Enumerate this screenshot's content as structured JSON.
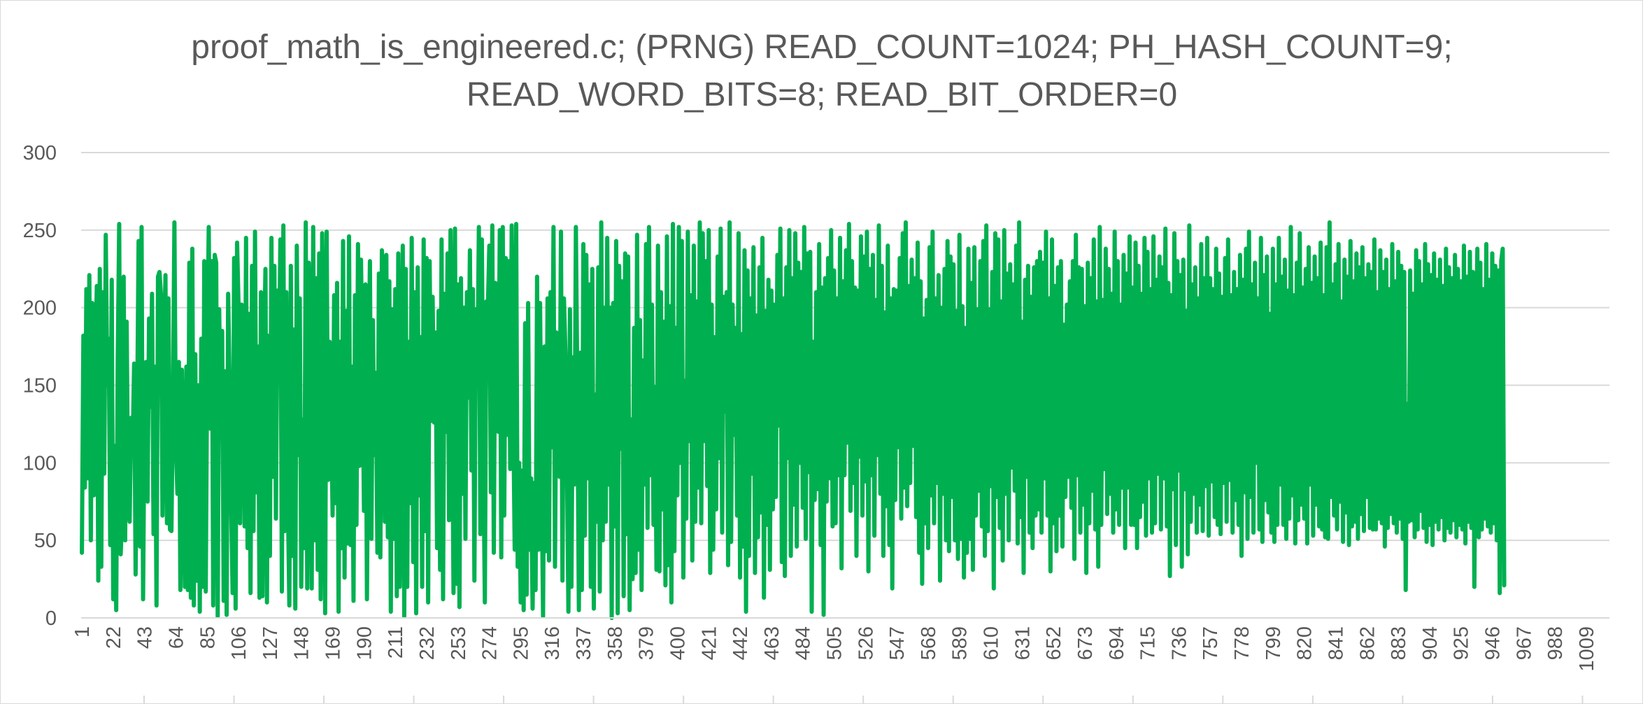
{
  "colors": {
    "series": "#00b050",
    "grid": "#d9d9d9",
    "text": "#595959"
  },
  "chart_data": {
    "type": "line",
    "title_lines": [
      "proof_math_is_engineered.c; (PRNG) READ_COUNT=1024; PH_HASH_COUNT=9;",
      "READ_WORD_BITS=8; READ_BIT_ORDER=0"
    ],
    "xlabel": "",
    "ylabel": "",
    "ylim": [
      0,
      300
    ],
    "yticks": [
      0,
      50,
      100,
      150,
      200,
      250,
      300
    ],
    "x_count": 1024,
    "x_tick_labels": [
      "1",
      "22",
      "43",
      "64",
      "85",
      "106",
      "127",
      "148",
      "169",
      "190",
      "211",
      "232",
      "253",
      "274",
      "295",
      "316",
      "337",
      "358",
      "379",
      "400",
      "421",
      "442",
      "463",
      "484",
      "505",
      "526",
      "547",
      "568",
      "589",
      "610",
      "631",
      "652",
      "673",
      "694",
      "715",
      "736",
      "757",
      "778",
      "799",
      "820",
      "841",
      "862",
      "883",
      "904",
      "925",
      "946",
      "967",
      "988",
      "1009"
    ],
    "grid": true,
    "legend": "none",
    "series": [
      {
        "values": [
          42,
          182,
          84,
          212,
          90,
          221,
          50,
          203,
          79,
          160,
          214,
          24,
          225,
          33,
          210,
          93,
          247,
          150,
          180,
          47,
          218,
          12,
          111,
          5,
          165,
          254,
          41,
          66,
          220,
          50,
          191,
          77,
          62,
          129,
          109,
          164,
          28,
          130,
          243,
          46,
          252,
          12,
          140,
          165,
          75,
          193,
          136,
          209,
          54,
          162,
          8,
          220,
          223,
          208,
          66,
          169,
          221,
          61,
          206,
          57,
          56,
          139,
          255,
          112,
          80,
          165,
          18,
          160,
          96,
          20,
          162,
          18,
          229,
          13,
          238,
          8,
          170,
          24,
          150,
          4,
          180,
          20,
          230,
          17,
          171,
          252,
          122,
          230,
          8,
          234,
          229,
          1,
          199,
          125,
          185,
          11,
          159,
          2,
          209,
          150,
          75,
          16,
          232,
          6,
          242,
          200,
          61,
          202,
          190,
          59,
          245,
          45,
          196,
          16,
          227,
          56,
          249,
          81,
          175,
          13,
          210,
          14,
          167,
          225,
          10,
          182,
          40,
          245,
          91,
          227,
          64,
          211,
          158,
          244,
          17,
          253,
          56,
          210,
          79,
          8,
          227,
          40,
          186,
          6,
          240,
          105,
          206,
          20,
          128,
          45,
          255,
          19,
          229,
          179,
          19,
          252,
          50,
          219,
          31,
          235,
          12,
          248,
          162,
          3,
          249,
          89,
          178,
          133,
          66,
          208,
          74,
          216,
          4,
          178,
          45,
          243,
          26,
          198,
          48,
          246,
          47,
          162,
          11,
          208,
          60,
          241,
          98,
          231,
          165,
          69,
          215,
          12,
          152,
          230,
          51,
          192,
          105,
          158,
          42,
          222,
          39,
          237,
          220,
          62,
          234,
          52,
          217,
          4,
          199,
          51,
          212,
          14,
          235,
          20,
          121,
          240,
          1,
          225,
          20,
          178,
          74,
          245,
          36,
          210,
          3,
          226,
          79,
          181,
          20,
          244,
          56,
          232,
          10,
          230,
          127,
          207,
          126,
          184,
          45,
          198,
          31,
          244,
          12,
          209,
          120,
          235,
          63,
          250,
          157,
          16,
          251,
          22,
          215,
          7,
          219,
          80,
          200,
          51,
          210,
          142,
          237,
          95,
          212,
          24,
          199,
          153,
          252,
          54,
          244,
          106,
          10,
          204,
          198,
          240,
          81,
          253,
          42,
          216,
          171,
          120,
          250,
          39,
          252,
          66,
          232,
          118,
          230,
          96,
          253,
          135,
          44,
          254,
          33,
          100,
          10,
          95,
          5,
          190,
          15,
          203,
          44,
          90,
          6,
          87,
          18,
          220,
          44,
          203,
          94,
          1,
          175,
          43,
          206,
          37,
          210,
          110,
          252,
          33,
          184,
          166,
          91,
          249,
          24,
          206,
          171,
          100,
          4,
          199,
          20,
          168,
          86,
          252,
          145,
          5,
          171,
          18,
          241,
          53,
          234,
          90,
          215,
          20,
          225,
          6,
          144,
          62,
          226,
          17,
          255,
          50,
          200,
          62,
          245,
          86,
          200,
          0,
          203,
          59,
          243,
          3,
          227,
          109,
          217,
          14,
          235,
          54,
          233,
          5,
          128,
          25,
          187,
          29,
          247,
          44,
          192,
          18,
          166,
          86,
          241,
          58,
          252,
          92,
          202,
          60,
          149,
          31,
          240,
          30,
          210,
          70,
          191,
          21,
          246,
          34,
          201,
          10,
          254,
          43,
          187,
          79,
          252,
          100,
          243,
          26,
          153,
          64,
          249,
          114,
          208,
          37,
          240,
          62,
          204,
          84,
          255,
          61,
          248,
          114,
          230,
          85,
          250,
          29,
          202,
          44,
          181,
          70,
          233,
          103,
          251,
          55,
          207,
          133,
          210,
          34,
          255,
          49,
          202,
          118,
          187,
          66,
          248,
          26,
          183,
          46,
          237,
          4,
          224,
          40,
          206,
          93,
          239,
          29,
          195,
          52,
          226,
          68,
          245,
          13,
          198,
          60,
          218,
          31,
          211,
          70,
          202,
          78,
          234,
          124,
          251,
          36,
          206,
          27,
          226,
          103,
          250,
          40,
          219,
          73,
          248,
          46,
          229,
          100,
          223,
          71,
          252,
          51,
          235,
          94,
          236,
          4,
          178,
          76,
          210,
          83,
          241,
          47,
          213,
          2,
          219,
          75,
          232,
          90,
          250,
          59,
          224,
          61,
          206,
          92,
          245,
          32,
          217,
          92,
          237,
          113,
          254,
          69,
          230,
          87,
          213,
          40,
          211,
          104,
          246,
          66,
          233,
          88,
          249,
          30,
          225,
          92,
          234,
          53,
          205,
          105,
          253,
          80,
          227,
          40,
          197,
          72,
          240,
          47,
          206,
          19,
          212,
          76,
          211,
          110,
          232,
          64,
          248,
          84,
          255,
          72,
          214,
          87,
          231,
          111,
          219,
          65,
          242,
          42,
          217,
          22,
          193,
          61,
          205,
          45,
          239,
          79,
          249,
          61,
          206,
          87,
          221,
          24,
          200,
          80,
          225,
          50,
          243,
          43,
          233,
          78,
          228,
          50,
          198,
          38,
          247,
          51,
          201,
          26,
          187,
          42,
          238,
          51,
          216,
          31,
          239,
          66,
          199,
          82,
          230,
          59,
          243,
          40,
          253,
          56,
          199,
          85,
          223,
          19,
          248,
          78,
          244,
          58,
          204,
          37,
          250,
          80,
          222,
          50,
          228,
          97,
          215,
          82,
          240,
          48,
          255,
          65,
          191,
          29,
          218,
          91,
          227,
          55,
          207,
          45,
          226,
          66,
          230,
          70,
          236,
          55,
          229,
          90,
          249,
          66,
          206,
          30,
          244,
          61,
          214,
          43,
          226,
          66,
          230,
          46,
          189,
          78,
          202,
          91,
          217,
          71,
          230,
          38,
          247,
          92,
          226,
          55,
          225,
          73,
          201,
          29,
          229,
          61,
          219,
          82,
          244,
          57,
          204,
          33,
          252,
          60,
          205,
          96,
          238,
          67,
          225,
          80,
          209,
          55,
          249,
          70,
          230,
          60,
          202,
          84,
          234,
          45,
          222,
          84,
          246,
          60,
          213,
          60,
          242,
          45,
          227,
          65,
          209,
          75,
          245,
          53,
          236,
          90,
          212,
          55,
          246,
          61,
          218,
          93,
          233,
          57,
          226,
          90,
          251,
          59,
          216,
          27,
          208,
          83,
          248,
          47,
          230,
          95,
          221,
          33,
          231,
          83,
          198,
          41,
          253,
          62,
          215,
          80,
          226,
          55,
          206,
          73,
          241,
          56,
          219,
          85,
          245,
          53,
          219,
          88,
          212,
          65,
          238,
          60,
          222,
          54,
          207,
          87,
          232,
          62,
          244,
          89,
          208,
          55,
          223,
          76,
          212,
          60,
          234,
          40,
          218,
          81,
          238,
          51,
          249,
          78,
          215,
          55,
          229,
          100,
          206,
          57,
          245,
          49,
          221,
          76,
          233,
          68,
          196,
          55,
          238,
          49,
          215,
          60,
          245,
          86,
          220,
          60,
          231,
          51,
          211,
          64,
          252,
          79,
          208,
          48,
          229,
          63,
          248,
          73,
          213,
          64,
          225,
          48,
          239,
          86,
          216,
          53,
          233,
          73,
          219,
          59,
          242,
          57,
          208,
          52,
          239,
          51,
          255,
          78,
          215,
          66,
          228,
          57,
          241,
          75,
          204,
          49,
          231,
          68,
          220,
          47,
          243,
          59,
          217,
          62,
          235,
          51,
          226,
          67,
          239,
          56,
          219,
          78,
          228,
          58,
          223,
          57,
          244,
          57,
          210,
          64,
          237,
          61,
          223,
          46,
          231,
          58,
          212,
          67,
          241,
          61,
          217,
          55,
          236,
          64,
          227,
          51,
          223,
          18,
          138,
          62,
          224,
          63,
          209,
          52,
          237,
          57,
          230,
          69,
          215,
          58,
          241,
          49,
          228,
          60,
          221,
          47,
          235,
          62,
          218,
          57,
          231,
          65,
          214,
          50,
          238,
          58,
          226,
          55,
          219,
          63,
          234,
          52,
          225,
          60,
          217,
          57,
          240,
          48,
          220,
          62,
          236,
          58,
          223,
          20,
          163,
          238,
          52,
          229,
          57,
          212,
          64,
          241,
          59,
          218,
          55,
          235,
          61,
          227,
          50,
          224,
          16,
          230,
          238,
          21
        ]
      }
    ]
  }
}
